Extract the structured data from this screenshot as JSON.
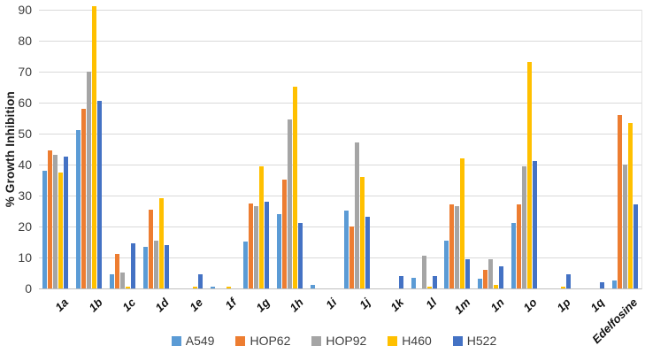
{
  "chart_data": {
    "type": "bar",
    "title": "",
    "xlabel": "",
    "ylabel": "% Growth Inhibition",
    "ylim": [
      0,
      90
    ],
    "yticks": [
      "0",
      "10",
      "20",
      "30",
      "40",
      "50",
      "60",
      "70",
      "80",
      "90"
    ],
    "grid": "horizontal",
    "legend_position": "bottom",
    "categories": [
      "1a",
      "1b",
      "1c",
      "1d",
      "1e",
      "1f",
      "1g",
      "1h",
      "1i",
      "1j",
      "1k",
      "1l",
      "1m",
      "1n",
      "1o",
      "1p",
      "1q",
      "Edelfosine"
    ],
    "series": [
      {
        "name": "A549",
        "color": "#5B9BD5",
        "values": [
          38,
          51,
          4.5,
          13.5,
          0,
          0.5,
          15,
          24,
          1,
          25,
          0,
          3.5,
          15.5,
          3,
          21,
          0,
          0,
          2.5
        ]
      },
      {
        "name": "HOP62",
        "color": "#ED7D31",
        "values": [
          44.5,
          58,
          11,
          25.5,
          0,
          0,
          27.5,
          35,
          0,
          20,
          0,
          0,
          27,
          6,
          27,
          0,
          0,
          56
        ]
      },
      {
        "name": "HOP92",
        "color": "#A5A5A5",
        "values": [
          43,
          70,
          5,
          15.5,
          0,
          0,
          26.5,
          54.5,
          0,
          47,
          0,
          10.5,
          26.5,
          9.5,
          39.5,
          0,
          0,
          40
        ]
      },
      {
        "name": "H460",
        "color": "#FFC000",
        "values": [
          37.5,
          91,
          0.5,
          29,
          0.5,
          0.5,
          39.5,
          65,
          0,
          36,
          0,
          0.5,
          42,
          1,
          73,
          0.5,
          0,
          53.5
        ]
      },
      {
        "name": "H522",
        "color": "#4472C4",
        "values": [
          42.5,
          60.5,
          14.5,
          14,
          4.5,
          0,
          28,
          21,
          0,
          23,
          4,
          4,
          9.5,
          7,
          41,
          4.5,
          2,
          27
        ]
      }
    ],
    "gridline_color": "#d9d9d9",
    "axis_line_color": "#bfbfbf"
  }
}
